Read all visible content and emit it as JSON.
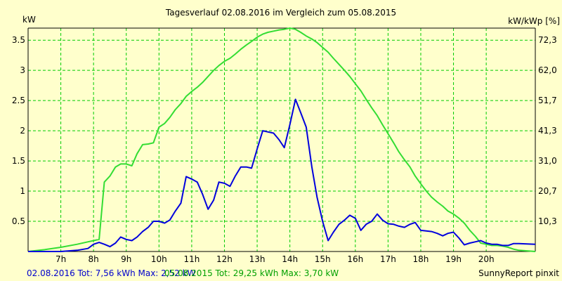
{
  "colors": {
    "background": "#FFFFCC",
    "grid": "#00CC00",
    "series_2016": "#0000DD",
    "series_2015": "#33DD33",
    "footer_2016": "#0000CC",
    "footer_2015": "#00A000"
  },
  "footer": {
    "left_2016": "02.08.2016 Tot: 7,56 kWh Max: 2,52 kW",
    "left_2015": "05.08.2015 Tot: 29,25 kWh Max: 3,70 kW",
    "right": "SunnyReport pinxit"
  },
  "chart_data": {
    "type": "line",
    "title": "Tagesverlauf 02.08.2016 im Vergleich zum 05.08.2015",
    "ylabel": "kW",
    "y2label": "kW/kWp [%]",
    "ylim": [
      0,
      3.7
    ],
    "y_ticks": [
      0.5,
      1,
      1.5,
      2,
      2.5,
      3,
      3.5
    ],
    "y2_ticks": [
      "10,3",
      "20,7",
      "31,0",
      "41,3",
      "51,7",
      "62,0",
      "72,3"
    ],
    "xlim": [
      6.0,
      21.5
    ],
    "x_ticks": [
      7,
      8,
      9,
      10,
      11,
      12,
      13,
      14,
      15,
      16,
      17,
      18,
      19,
      20
    ],
    "x_tick_labels": [
      "7h",
      "8h",
      "9h",
      "10h",
      "11h",
      "12h",
      "13h",
      "14h",
      "15h",
      "16h",
      "17h",
      "18h",
      "19h",
      "20h"
    ],
    "grid": true,
    "series": [
      {
        "name": "02.08.2016",
        "color": "#0000DD",
        "x": [
          6.0,
          6.5,
          7.0,
          7.5,
          7.83,
          8.0,
          8.17,
          8.33,
          8.5,
          8.67,
          8.83,
          9.0,
          9.17,
          9.33,
          9.5,
          9.67,
          9.83,
          10.0,
          10.17,
          10.33,
          10.5,
          10.67,
          10.83,
          11.0,
          11.17,
          11.33,
          11.5,
          11.67,
          11.83,
          12.0,
          12.17,
          12.33,
          12.5,
          12.67,
          12.83,
          13.0,
          13.17,
          13.33,
          13.5,
          13.67,
          13.83,
          14.0,
          14.17,
          14.33,
          14.5,
          14.67,
          14.83,
          15.0,
          15.17,
          15.33,
          15.5,
          15.67,
          15.83,
          16.0,
          16.17,
          16.33,
          16.5,
          16.67,
          16.83,
          17.0,
          17.17,
          17.33,
          17.5,
          17.67,
          17.83,
          18.0,
          18.17,
          18.33,
          18.5,
          18.67,
          18.83,
          19.0,
          19.17,
          19.33,
          19.5,
          19.67,
          19.83,
          20.0,
          20.17,
          20.33,
          20.5,
          20.67,
          20.83,
          21.0,
          21.5
        ],
        "y": [
          0,
          0,
          0,
          0.02,
          0.05,
          0.12,
          0.15,
          0.12,
          0.08,
          0.14,
          0.24,
          0.2,
          0.18,
          0.24,
          0.33,
          0.4,
          0.5,
          0.5,
          0.47,
          0.52,
          0.67,
          0.8,
          1.24,
          1.2,
          1.15,
          0.95,
          0.7,
          0.85,
          1.15,
          1.13,
          1.08,
          1.25,
          1.4,
          1.4,
          1.38,
          1.7,
          2.0,
          1.98,
          1.96,
          1.85,
          1.72,
          2.1,
          2.52,
          2.3,
          2.06,
          1.4,
          0.9,
          0.5,
          0.18,
          0.32,
          0.45,
          0.52,
          0.6,
          0.55,
          0.35,
          0.45,
          0.5,
          0.62,
          0.52,
          0.46,
          0.45,
          0.42,
          0.4,
          0.45,
          0.48,
          0.35,
          0.34,
          0.33,
          0.3,
          0.26,
          0.3,
          0.32,
          0.22,
          0.11,
          0.14,
          0.16,
          0.18,
          0.14,
          0.12,
          0.12,
          0.1,
          0.1,
          0.13,
          0.13,
          0.12
        ],
        "note": "approximate"
      },
      {
        "name": "05.08.2015",
        "color": "#33DD33",
        "x": [
          6.0,
          6.5,
          7.0,
          7.5,
          8.0,
          8.17,
          8.33,
          8.5,
          8.67,
          8.83,
          9.0,
          9.17,
          9.33,
          9.5,
          9.67,
          9.83,
          10.0,
          10.17,
          10.33,
          10.5,
          10.67,
          10.83,
          11.0,
          11.17,
          11.33,
          11.5,
          11.67,
          11.83,
          12.0,
          12.17,
          12.33,
          12.5,
          12.67,
          12.83,
          13.0,
          13.17,
          13.33,
          13.5,
          13.67,
          13.83,
          14.0,
          14.17,
          14.33,
          14.5,
          14.67,
          14.83,
          15.0,
          15.17,
          15.33,
          15.5,
          15.67,
          15.83,
          16.0,
          16.17,
          16.33,
          16.5,
          16.67,
          16.83,
          17.0,
          17.17,
          17.33,
          17.5,
          17.67,
          17.83,
          18.0,
          18.17,
          18.33,
          18.5,
          18.67,
          18.83,
          19.0,
          19.17,
          19.33,
          19.5,
          19.67,
          19.83,
          20.0,
          20.17,
          20.33,
          20.5,
          20.67,
          20.83,
          21.0,
          21.5
        ],
        "y": [
          0,
          0.03,
          0.07,
          0.12,
          0.18,
          0.2,
          1.15,
          1.25,
          1.4,
          1.45,
          1.45,
          1.42,
          1.62,
          1.77,
          1.78,
          1.8,
          2.06,
          2.12,
          2.22,
          2.35,
          2.45,
          2.57,
          2.65,
          2.72,
          2.8,
          2.9,
          3.0,
          3.08,
          3.15,
          3.2,
          3.27,
          3.35,
          3.42,
          3.48,
          3.55,
          3.6,
          3.63,
          3.65,
          3.67,
          3.68,
          3.7,
          3.68,
          3.63,
          3.57,
          3.52,
          3.46,
          3.38,
          3.3,
          3.2,
          3.1,
          3.0,
          2.9,
          2.78,
          2.66,
          2.52,
          2.38,
          2.25,
          2.1,
          1.95,
          1.8,
          1.65,
          1.52,
          1.4,
          1.25,
          1.12,
          1.0,
          0.9,
          0.82,
          0.75,
          0.67,
          0.62,
          0.55,
          0.47,
          0.35,
          0.25,
          0.14,
          0.12,
          0.1,
          0.1,
          0.09,
          0.07,
          0.04,
          0.02,
          0
        ],
        "note": "approximate"
      }
    ]
  }
}
